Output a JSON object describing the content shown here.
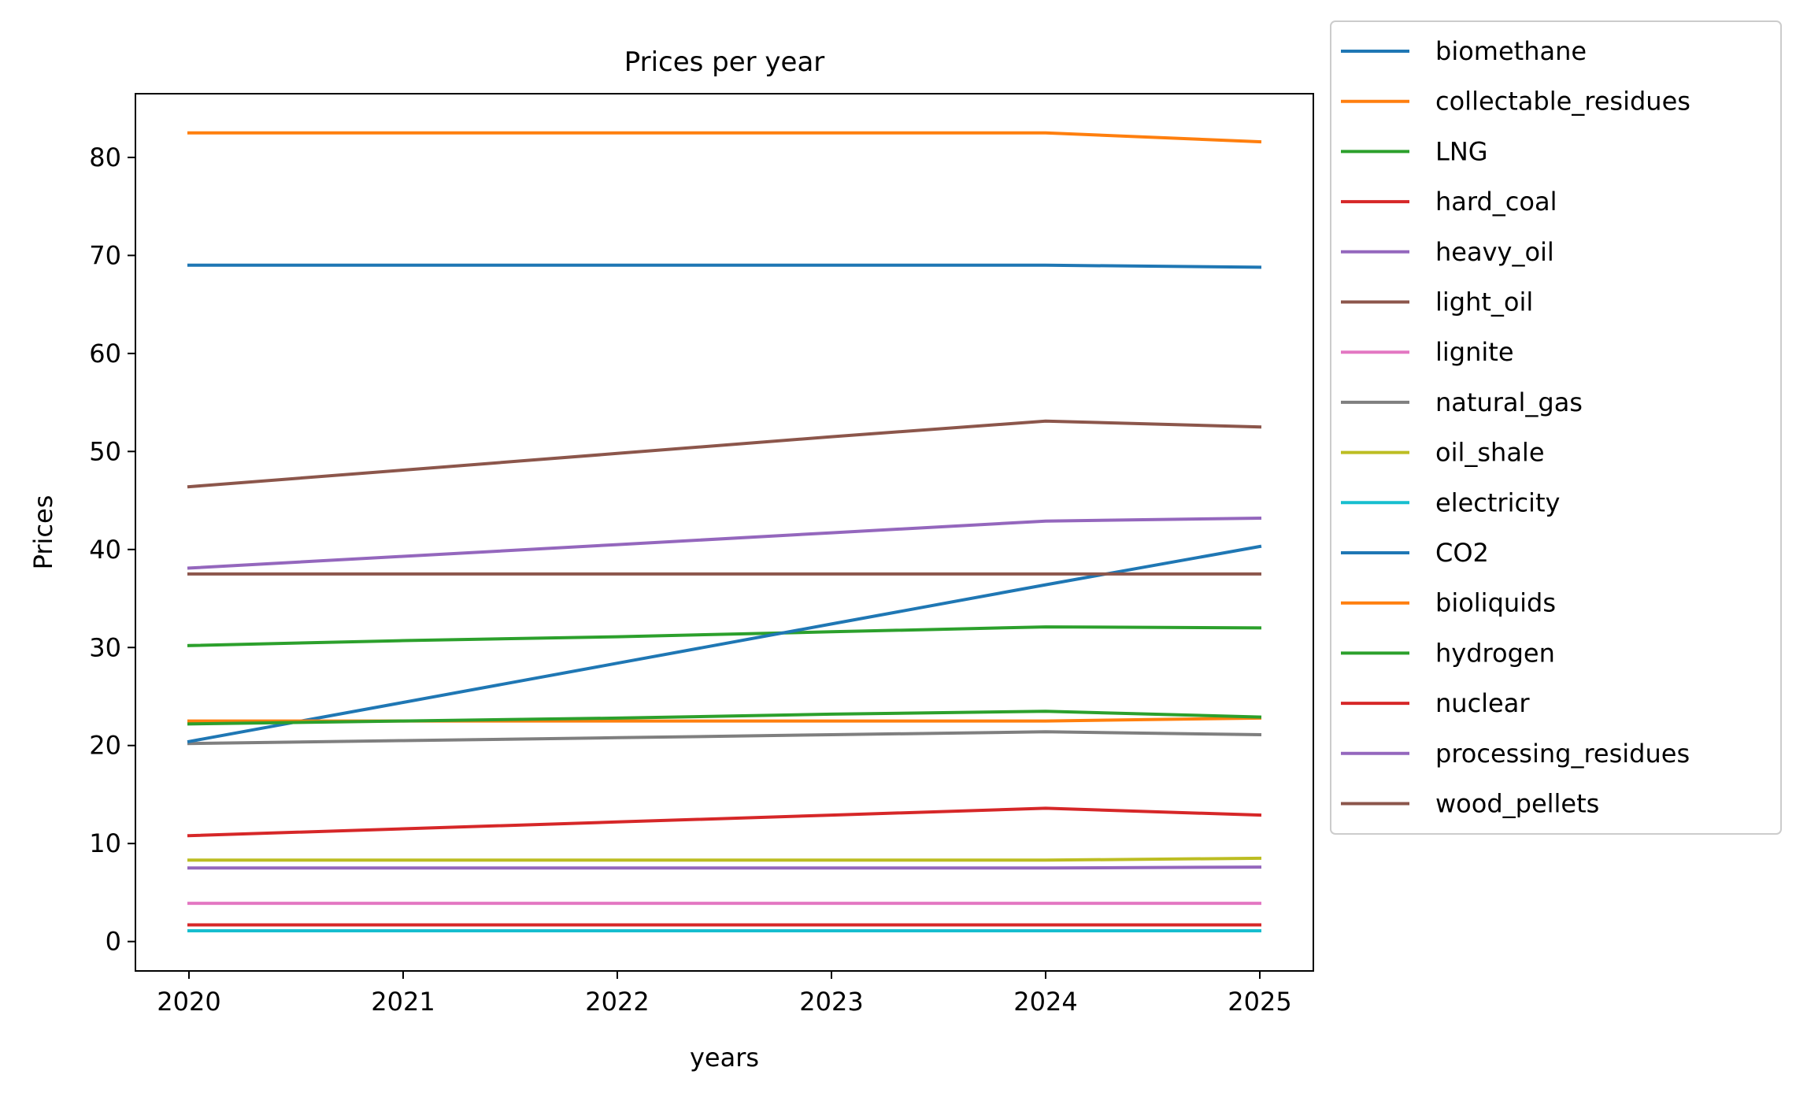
{
  "chart_data": {
    "type": "line",
    "title": "Prices per year",
    "xlabel": "years",
    "ylabel": "Prices",
    "x": [
      2020,
      2021,
      2022,
      2023,
      2024,
      2025
    ],
    "xticks": [
      "2020",
      "2021",
      "2022",
      "2023",
      "2024",
      "2025"
    ],
    "yticks": [
      "0",
      "10",
      "20",
      "30",
      "40",
      "50",
      "60",
      "70",
      "80"
    ],
    "xlim": [
      2019.75,
      2025.25
    ],
    "ylim": [
      -3,
      86.5
    ],
    "grid": false,
    "legend_position": "outside-right",
    "series": [
      {
        "name": "biomethane",
        "color": "#1f77b4",
        "values": [
          69.0,
          69.0,
          69.0,
          69.0,
          69.0,
          68.8
        ]
      },
      {
        "name": "collectable_residues",
        "color": "#ff7f0e",
        "values": [
          82.5,
          82.5,
          82.5,
          82.5,
          82.5,
          81.6
        ]
      },
      {
        "name": "LNG",
        "color": "#2ca02c",
        "values": [
          30.2,
          30.7,
          31.1,
          31.6,
          32.1,
          32.0
        ]
      },
      {
        "name": "hard_coal",
        "color": "#d62728",
        "values": [
          10.8,
          11.5,
          12.2,
          12.9,
          13.6,
          12.9
        ]
      },
      {
        "name": "heavy_oil",
        "color": "#9467bd",
        "values": [
          38.1,
          39.3,
          40.5,
          41.7,
          42.9,
          43.2
        ]
      },
      {
        "name": "light_oil",
        "color": "#8c564b",
        "values": [
          46.4,
          48.1,
          49.8,
          51.5,
          53.1,
          52.5
        ]
      },
      {
        "name": "lignite",
        "color": "#e377c2",
        "values": [
          3.9,
          3.9,
          3.9,
          3.9,
          3.9,
          3.9
        ]
      },
      {
        "name": "natural_gas",
        "color": "#7f7f7f",
        "values": [
          20.2,
          20.5,
          20.8,
          21.1,
          21.4,
          21.1
        ]
      },
      {
        "name": "oil_shale",
        "color": "#bcbd22",
        "values": [
          8.3,
          8.3,
          8.3,
          8.3,
          8.3,
          8.5
        ]
      },
      {
        "name": "electricity",
        "color": "#17becf",
        "values": [
          1.1,
          1.1,
          1.1,
          1.1,
          1.1,
          1.1
        ]
      },
      {
        "name": "CO2",
        "color": "#1f77b4",
        "values": [
          20.4,
          24.4,
          28.4,
          32.4,
          36.4,
          40.3
        ]
      },
      {
        "name": "bioliquids",
        "color": "#ff7f0e",
        "values": [
          22.5,
          22.5,
          22.5,
          22.5,
          22.5,
          22.8
        ]
      },
      {
        "name": "hydrogen",
        "color": "#2ca02c",
        "values": [
          22.2,
          22.5,
          22.8,
          23.2,
          23.5,
          22.9
        ]
      },
      {
        "name": "nuclear",
        "color": "#d62728",
        "values": [
          1.7,
          1.7,
          1.7,
          1.7,
          1.7,
          1.7
        ]
      },
      {
        "name": "processing_residues",
        "color": "#9467bd",
        "values": [
          7.5,
          7.5,
          7.5,
          7.5,
          7.5,
          7.6
        ]
      },
      {
        "name": "wood_pellets",
        "color": "#8c564b",
        "values": [
          37.5,
          37.5,
          37.5,
          37.5,
          37.5,
          37.5
        ]
      }
    ]
  }
}
